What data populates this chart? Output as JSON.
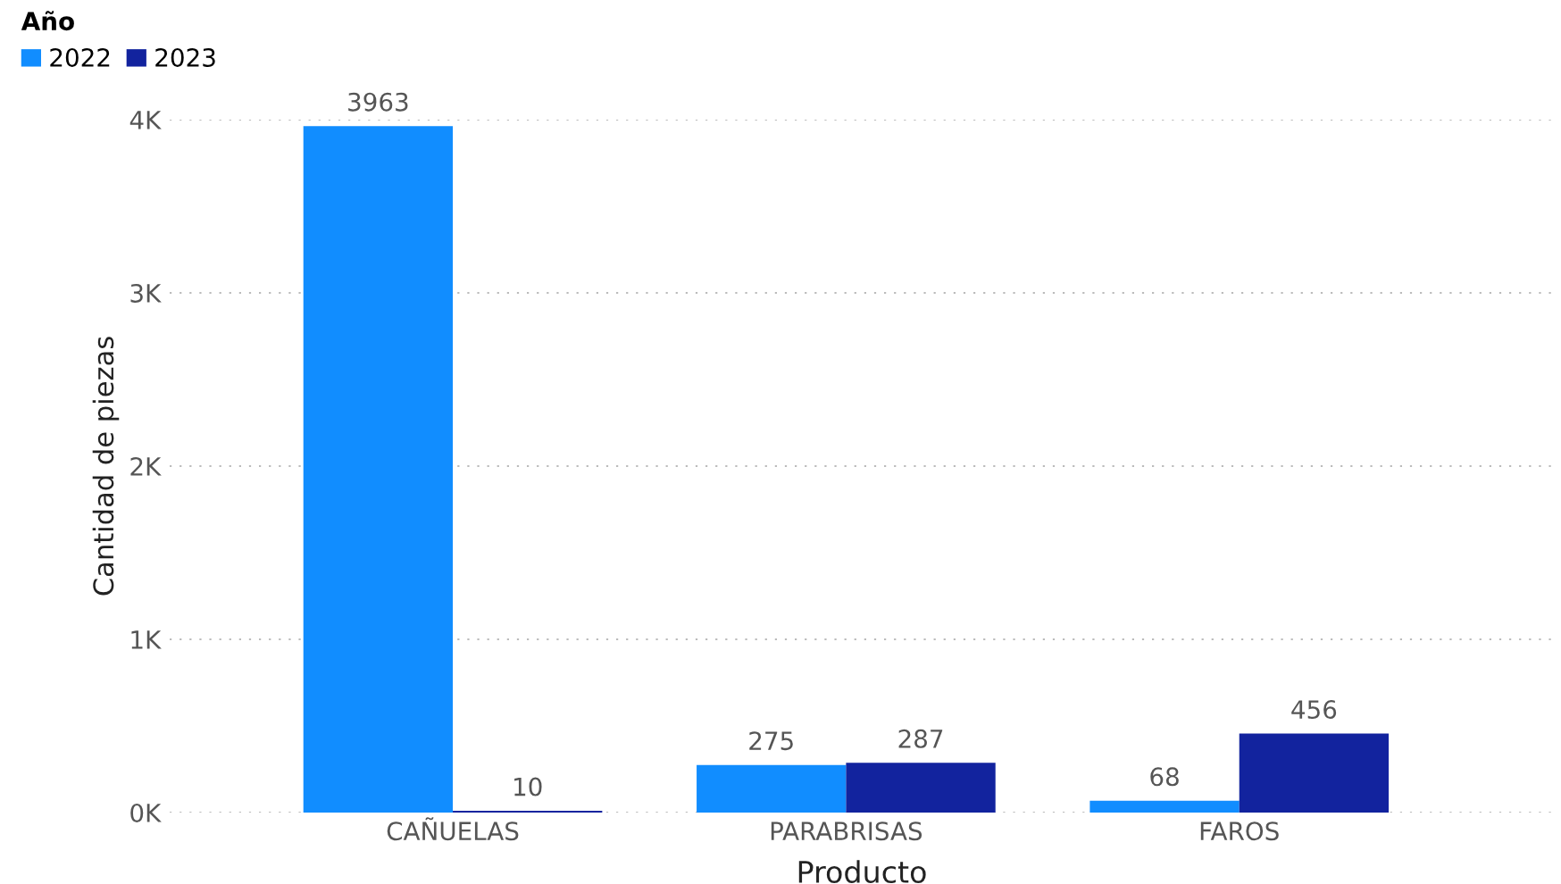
{
  "chart_data": {
    "type": "bar",
    "xlabel": "Producto",
    "ylabel": "Cantidad de piezas",
    "legend_title": "Año",
    "legend": "top left",
    "categories": [
      "CAÑUELAS",
      "PARABRISAS",
      "FAROS"
    ],
    "series": [
      {
        "name": "2022",
        "color": "#118dff",
        "values": [
          3963,
          275,
          68
        ]
      },
      {
        "name": "2023",
        "color": "#12239e",
        "values": [
          10,
          287,
          456
        ]
      }
    ],
    "ylim": [
      0,
      4000
    ],
    "yticks": [
      {
        "value": 0,
        "label": "0K"
      },
      {
        "value": 1000,
        "label": "1K"
      },
      {
        "value": 2000,
        "label": "2K"
      },
      {
        "value": 3000,
        "label": "3K"
      },
      {
        "value": 4000,
        "label": "4K"
      }
    ],
    "grid": "y",
    "data_labels": true
  }
}
